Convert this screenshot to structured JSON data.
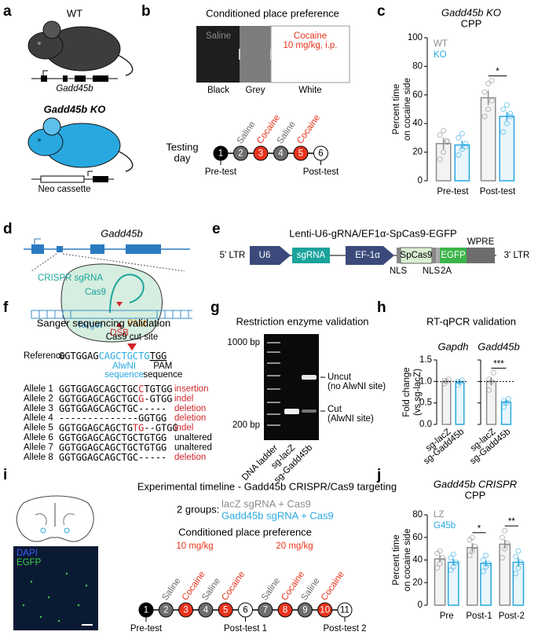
{
  "panel_labels": [
    "a",
    "b",
    "c",
    "d",
    "e",
    "f",
    "g",
    "h",
    "i",
    "j"
  ],
  "a": {
    "wt_title": "WT",
    "wt_gene": "Gadd45b",
    "ko_title": "Gadd45b KO",
    "ko_cassette": "Neo cassette"
  },
  "b": {
    "title": "Conditioned place preference",
    "saline": "Saline",
    "cocaine": "Cocaine",
    "dose": "10 mg/kg, i.p.",
    "compartments": [
      "Black",
      "Grey",
      "White"
    ],
    "timeline_label": [
      "Testing",
      "day"
    ],
    "days": [
      {
        "day": 1,
        "color": "#000000"
      },
      {
        "day": 2,
        "label": "Saline",
        "color": "#6d6d6d"
      },
      {
        "day": 3,
        "label": "Cocaine",
        "color": "#e8341c"
      },
      {
        "day": 4,
        "label": "Saline",
        "color": "#6d6d6d"
      },
      {
        "day": 5,
        "label": "Cocaine",
        "color": "#e8341c"
      },
      {
        "day": 6,
        "color": "#ffffff"
      }
    ],
    "tests": [
      "Pre-test",
      "Post-test"
    ]
  },
  "d": {
    "gene": "Gadd45b",
    "sgrna": "CRISPR sgRNA",
    "cas9": "Cas9",
    "target": "Target",
    "pam": "PAM",
    "dsb": "DSB"
  },
  "e": {
    "title": "Lenti-U6-gRNA/EF1α-SpCas9-EGFP",
    "ltr5": "5' LTR",
    "ltr3": "3' LTR",
    "u6": "U6",
    "sgrna": "sgRNA",
    "ef1a": "EF-1α",
    "spcas9": "SpCas9",
    "egfp": "EGFP",
    "wpre": "WPRE",
    "nls1": "NLS",
    "nls2": "NLS",
    "t2a": "2A"
  },
  "f": {
    "title": "Sanger sequencing validation",
    "cut_site": "Cas9 cut site",
    "reference_label": "Reference",
    "reference": [
      {
        "text": "GGTGGAG"
      },
      {
        "text": "CAGCTGCTG",
        "color": "#29a8e0"
      },
      {
        "text": "TGG",
        "underline": true
      }
    ],
    "alwni": [
      "AlwNI",
      "sequence"
    ],
    "pam": [
      "PAM",
      "sequence"
    ],
    "alleles": [
      {
        "name": "Allele 1",
        "segments": [
          {
            "text": "GGTGGAGCAGCTGC"
          },
          {
            "text": "C",
            "color": "#d2232a"
          },
          {
            "text": "TGTGG"
          }
        ],
        "outcome": "insertion",
        "outcome_color": "#d2232a"
      },
      {
        "name": "Allele 2",
        "segments": [
          {
            "text": "GGTGGAGCAGCTGC"
          },
          {
            "text": "G",
            "color": "#d2232a"
          },
          {
            "text": "-GTGG"
          }
        ],
        "outcome": "indel",
        "outcome_color": "#d2232a"
      },
      {
        "name": "Allele 3",
        "segments": [
          {
            "text": "GGTGGAGCAGCTGC-----"
          }
        ],
        "outcome": "deletion",
        "outcome_color": "#d2232a"
      },
      {
        "name": "Allele 4",
        "segments": [
          {
            "text": "--------------GGTGG"
          }
        ],
        "outcome": "deletion",
        "outcome_color": "#d2232a"
      },
      {
        "name": "Allele 5",
        "segments": [
          {
            "text": "GGTGGAGCAGCTG"
          },
          {
            "text": "TG",
            "color": "#d2232a"
          },
          {
            "text": "--GTGG"
          }
        ],
        "outcome": "indel",
        "outcome_color": "#d2232a"
      },
      {
        "name": "Allele 6",
        "segments": [
          {
            "text": "GGTGGAGCAGCTGCTGTGG"
          }
        ],
        "outcome": "unaltered",
        "outcome_color": "#000000"
      },
      {
        "name": "Allele 7",
        "segments": [
          {
            "text": "GGTGGAGCAGCTGCTGTGG"
          }
        ],
        "outcome": "unaltered",
        "outcome_color": "#000000"
      },
      {
        "name": "Allele 8",
        "segments": [
          {
            "text": "GGTGGAGCAGCTGC-----"
          }
        ],
        "outcome": "deletion",
        "outcome_color": "#d2232a"
      }
    ]
  },
  "g": {
    "title": "Restriction enzyme validation",
    "ladder_marks": [
      "1000 bp",
      "200 bp"
    ],
    "uncut": [
      "Uncut",
      "(no AlwNI site)"
    ],
    "cut": [
      "Cut",
      "(AlwNI site)"
    ],
    "lanes": [
      "DNA ladder",
      "sg-lacZ",
      "sg-Gadd45b"
    ]
  },
  "h": {
    "title": "RT-qPCR validation"
  },
  "i": {
    "title": "Experimental timeline - Gadd45b CRISPR/Cas9 targeting",
    "stain": [
      "DAPI",
      "EGFP"
    ],
    "groups_label": "2 groups:",
    "groups": [
      {
        "text": "lacZ sgRNA + Cas9",
        "color": "#8c8c8c"
      },
      {
        "text": "Gadd45b sgRNA + Cas9",
        "color": "#29a8e0"
      }
    ],
    "cpp": "Conditioned place preference",
    "doses": [
      "10 mg/kg",
      "20 mg/kg"
    ],
    "days": [
      {
        "day": 1,
        "color": "#000000"
      },
      {
        "day": 2,
        "label": "Saline",
        "color": "#6d6d6d"
      },
      {
        "day": 3,
        "label": "Cocaine",
        "color": "#e8341c"
      },
      {
        "day": 4,
        "label": "Saline",
        "color": "#6d6d6d"
      },
      {
        "day": 5,
        "label": "Cocaine",
        "color": "#e8341c"
      },
      {
        "day": 6,
        "color": "#ffffff"
      },
      {
        "day": 7,
        "label": "Saline",
        "color": "#6d6d6d"
      },
      {
        "day": 8,
        "label": "Cocaine",
        "color": "#e8341c"
      },
      {
        "day": 9,
        "label": "Saline",
        "color": "#6d6d6d"
      },
      {
        "day": 10,
        "label": "Cocaine",
        "color": "#e8341c"
      },
      {
        "day": 11,
        "color": "#ffffff"
      }
    ],
    "tests": [
      "Pre-test",
      "Post-test 1",
      "Post-test 2"
    ]
  },
  "chart_data": [
    {
      "type": "bar",
      "title": [
        "Gadd45b KO",
        "CPP"
      ],
      "ylabel": [
        "Percent time",
        "on cocaine side"
      ],
      "categories": [
        "Pre-test",
        "Post-test"
      ],
      "series": [
        {
          "name": "WT",
          "color": "#8c8c8c",
          "values": [
            26,
            58
          ],
          "errors": [
            4,
            5
          ],
          "points": [
            [
              15,
              20,
              27,
              32,
              35,
              28
            ],
            [
              45,
              50,
              56,
              62,
              68,
              70
            ]
          ]
        },
        {
          "name": "KO",
          "color": "#29a8e0",
          "values": [
            25,
            45
          ],
          "errors": [
            3,
            3
          ],
          "points": [
            [
              18,
              22,
              26,
              30,
              33,
              24
            ],
            [
              34,
              40,
              45,
              50,
              53,
              47
            ]
          ]
        }
      ],
      "ylim": [
        0,
        100
      ],
      "yticks": [
        0,
        20,
        40,
        60,
        80,
        100
      ],
      "significance": [
        null,
        "*"
      ],
      "legend": "top-left"
    },
    {
      "type": "bar",
      "title": "Gapdh",
      "ylabel": [
        "Fold change",
        "(vs sg-lacZ)"
      ],
      "categories": [
        "sg-lacZ",
        "sg-Gadd45b"
      ],
      "colors": [
        "#8c8c8c",
        "#29a8e0"
      ],
      "values": [
        1.0,
        0.98
      ],
      "errors": [
        0.03,
        0.04
      ],
      "points": [
        [
          0.95,
          1.0,
          1.05,
          1.02
        ],
        [
          0.92,
          0.98,
          1.03,
          1.0
        ]
      ],
      "ylim": [
        0,
        1.5
      ],
      "yticks": [
        {
          "value": 0,
          "label": "0.0"
        },
        0.5,
        {
          "value": 1,
          "label": "1.0"
        },
        1.5
      ],
      "reference_line": 1
    },
    {
      "type": "bar",
      "title": "Gadd45b",
      "categories": [
        "sg-lacZ",
        "sg-Gadd45b"
      ],
      "colors": [
        "#8c8c8c",
        "#29a8e0"
      ],
      "values": [
        1.0,
        0.52
      ],
      "errors": [
        0.1,
        0.05
      ],
      "points": [
        [
          0.8,
          1.0,
          1.2,
          1.05
        ],
        [
          0.4,
          0.5,
          0.6,
          0.55
        ]
      ],
      "ylim": [
        0,
        1.5
      ],
      "yticks": [
        0,
        0.5,
        1,
        1.5
      ],
      "tick_labels": false,
      "reference_line": 1,
      "significance": "***"
    },
    {
      "type": "bar",
      "title": [
        "Gadd45b CRISPR",
        "CPP"
      ],
      "ylabel": [
        "Percent time",
        "on cocaine side"
      ],
      "categories": [
        "Pre",
        "Post-1",
        "Post-2"
      ],
      "series": [
        {
          "name": "LZ",
          "color": "#8c8c8c",
          "values": [
            41,
            51,
            54
          ],
          "errors": [
            3,
            4,
            4
          ],
          "points": [
            [
              33,
              37,
              42,
              46,
              48
            ],
            [
              44,
              48,
              52,
              58,
              60
            ],
            [
              42,
              50,
              55,
              60,
              66
            ]
          ]
        },
        {
          "name": "G45b",
          "color": "#29a8e0",
          "values": [
            38,
            37,
            38
          ],
          "errors": [
            3,
            3,
            4
          ],
          "points": [
            [
              31,
              34,
              38,
              42,
              45
            ],
            [
              30,
              34,
              37,
              40,
              44
            ],
            [
              28,
              33,
              38,
              43,
              48
            ]
          ]
        }
      ],
      "ylim": [
        0,
        80
      ],
      "yticks": [
        0,
        20,
        40,
        60,
        80
      ],
      "significance": [
        null,
        "*",
        "**"
      ],
      "legend": "top-left"
    }
  ]
}
